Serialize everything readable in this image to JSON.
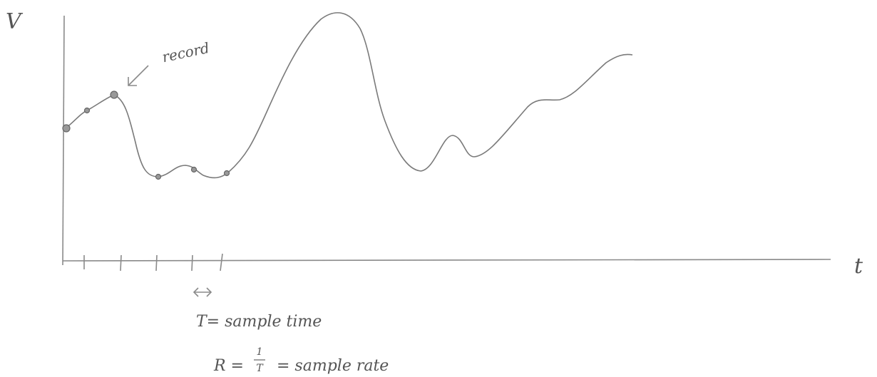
{
  "axes": {
    "y_label": "V",
    "x_label": "t"
  },
  "annotation": "record",
  "definitions": {
    "sample_time": "T= sample time",
    "rate_prefix": "R =",
    "rate_numerator": "1",
    "rate_denominator": "T",
    "rate_suffix": "= sample rate"
  }
}
